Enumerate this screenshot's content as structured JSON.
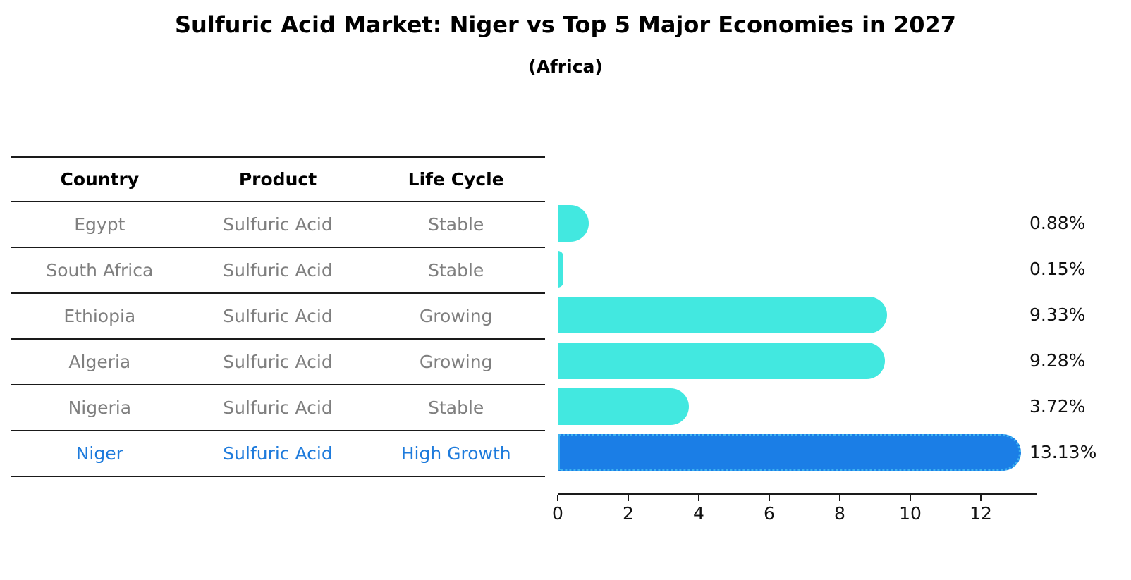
{
  "title": "Sulfuric Acid Market: Niger vs Top 5 Major Economies in 2027",
  "subtitle": "(Africa)",
  "table": {
    "headers": {
      "country": "Country",
      "product": "Product",
      "life_cycle": "Life Cycle"
    },
    "rows": [
      {
        "country": "Egypt",
        "product": "Sulfuric Acid",
        "life_cycle": "Stable",
        "highlighted": false
      },
      {
        "country": "South Africa",
        "product": "Sulfuric Acid",
        "life_cycle": "Stable",
        "highlighted": false
      },
      {
        "country": "Ethiopia",
        "product": "Sulfuric Acid",
        "life_cycle": "Growing",
        "highlighted": false
      },
      {
        "country": "Algeria",
        "product": "Sulfuric Acid",
        "life_cycle": "Growing",
        "highlighted": false
      },
      {
        "country": "Nigeria",
        "product": "Sulfuric Acid",
        "life_cycle": "Stable",
        "highlighted": false
      },
      {
        "country": "Niger",
        "product": "Sulfuric Acid",
        "life_cycle": "High Growth",
        "highlighted": true
      }
    ]
  },
  "chart_data": {
    "type": "bar",
    "orientation": "horizontal",
    "title": "Sulfuric Acid Market: Niger vs Top 5 Major Economies in 2027",
    "subtitle": "(Africa)",
    "categories": [
      "Egypt",
      "South Africa",
      "Ethiopia",
      "Algeria",
      "Nigeria",
      "Niger"
    ],
    "values": [
      0.88,
      0.15,
      9.33,
      9.28,
      3.72,
      13.13
    ],
    "value_labels": [
      "0.88%",
      "0.15%",
      "9.33%",
      "9.28%",
      "3.72%",
      "13.13%"
    ],
    "x_ticks": [
      0,
      2,
      4,
      6,
      8,
      10,
      12
    ],
    "xlim": [
      0,
      13.6
    ],
    "grid": false,
    "legend": false,
    "highlight_index": 5
  },
  "colors": {
    "bar": "#42E8E0",
    "highlight_bar": "#1B7EE6",
    "highlight_border": "#3DB2F0",
    "highlight_text": "#1E7BDC",
    "table_text": "#7f7f7f",
    "axis_text": "#111111"
  }
}
